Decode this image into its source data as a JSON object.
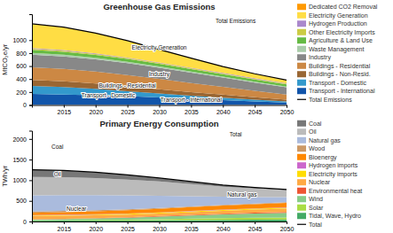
{
  "chart_data": [
    {
      "type": "area",
      "stacked": true,
      "title": "Greenhouse Gas Emissions",
      "ylabel": "MtCO₂e/yr",
      "x": [
        2010,
        2015,
        2020,
        2025,
        2030,
        2035,
        2040,
        2045,
        2050
      ],
      "xlim": [
        2010,
        2050
      ],
      "xticks": [
        2015,
        2020,
        2025,
        2030,
        2035,
        2040,
        2045,
        2050
      ],
      "ylim": [
        0,
        1400
      ],
      "yticks": [
        0,
        200,
        400,
        600,
        800,
        1000
      ],
      "legend": "right",
      "series": [
        {
          "name": "Transport - International",
          "color": "#1155aa",
          "values": [
            170,
            162,
            150,
            135,
            115,
            95,
            75,
            55,
            38
          ]
        },
        {
          "name": "Transport - Domestic",
          "color": "#3399cc",
          "values": [
            125,
            115,
            98,
            78,
            62,
            48,
            38,
            28,
            18
          ]
        },
        {
          "name": "Buildings - Non-Resid.",
          "color": "#996633",
          "values": [
            90,
            88,
            82,
            74,
            65,
            56,
            46,
            36,
            26
          ]
        },
        {
          "name": "Buildings - Residential",
          "color": "#cc8844",
          "values": [
            195,
            192,
            185,
            175,
            160,
            140,
            120,
            98,
            78
          ]
        },
        {
          "name": "Industry",
          "color": "#888888",
          "values": [
            195,
            192,
            188,
            183,
            173,
            158,
            143,
            128,
            113
          ]
        },
        {
          "name": "Waste Management",
          "color": "#aaccaa",
          "values": [
            28,
            26,
            24,
            22,
            20,
            18,
            16,
            14,
            12
          ]
        },
        {
          "name": "Agriculture & Land Use",
          "color": "#66bb44",
          "values": [
            48,
            46,
            44,
            42,
            40,
            38,
            36,
            34,
            32
          ]
        },
        {
          "name": "Other Electricity Imports",
          "color": "#cccc44",
          "values": [
            18,
            17,
            16,
            15,
            14,
            13,
            12,
            11,
            10
          ]
        },
        {
          "name": "Hydrogen Production",
          "color": "#aa88cc",
          "values": [
            8,
            8,
            8,
            8,
            8,
            8,
            8,
            8,
            8
          ]
        },
        {
          "name": "Electricity Generation",
          "color": "#ffdd44",
          "values": [
            370,
            350,
            310,
            255,
            195,
            145,
            95,
            65,
            45
          ]
        },
        {
          "name": "Dedicated CO2 Removal",
          "color": "#ff9900",
          "values": [
            4,
            4,
            4,
            4,
            4,
            4,
            4,
            4,
            4
          ]
        },
        {
          "name": "Total Emissions",
          "color": "black",
          "type": "line",
          "values": [
            1251,
            1200,
            1109,
            991,
            856,
            723,
            593,
            481,
            384
          ]
        }
      ],
      "annotations": [
        {
          "text": "Electricity Generation",
          "x": 2030,
          "y": 850
        },
        {
          "text": "Industry",
          "x": 2030,
          "y": 450
        },
        {
          "text": "Buildings - Residential",
          "x": 2025,
          "y": 270
        },
        {
          "text": "Transport - Domestic",
          "x": 2022,
          "y": 110
        },
        {
          "text": "Transport - International",
          "x": 2035,
          "y": 45
        },
        {
          "text": "Total Emissions",
          "x": 2042,
          "y": 1260
        }
      ]
    },
    {
      "type": "area",
      "stacked": true,
      "title": "Primary Energy Consumption",
      "ylabel": "TWh/yr",
      "x": [
        2010,
        2015,
        2020,
        2025,
        2030,
        2035,
        2040,
        2045,
        2050
      ],
      "xlim": [
        2010,
        2050
      ],
      "xticks": [
        2015,
        2020,
        2025,
        2030,
        2035,
        2040,
        2045,
        2050
      ],
      "ylim": [
        0,
        2200
      ],
      "yticks": [
        0,
        500,
        1000,
        1500,
        2000
      ],
      "legend": "right",
      "series": [
        {
          "name": "Tidal, Wave, Hydro",
          "color": "#44aa66",
          "values": [
            18,
            20,
            23,
            26,
            30,
            34,
            38,
            42,
            46
          ]
        },
        {
          "name": "Solar",
          "color": "#aadd44",
          "values": [
            8,
            10,
            14,
            18,
            26,
            34,
            42,
            48,
            53
          ]
        },
        {
          "name": "Wind",
          "color": "#88cc88",
          "values": [
            22,
            28,
            36,
            48,
            63,
            78,
            93,
            103,
            110
          ]
        },
        {
          "name": "Environmental heat",
          "color": "#ee5533",
          "values": [
            7,
            8,
            9,
            11,
            13,
            15,
            17,
            19,
            21
          ]
        },
        {
          "name": "Nuclear",
          "color": "#ffaa44",
          "values": [
            78,
            76,
            70,
            66,
            63,
            66,
            70,
            76,
            83
          ]
        },
        {
          "name": "Electricity imports",
          "color": "#ffdd00",
          "values": [
            14,
            15,
            16,
            17,
            18,
            19,
            20,
            21,
            22
          ]
        },
        {
          "name": "Hydrogen imports",
          "color": "#cc66cc",
          "values": [
            9,
            9,
            9,
            9,
            9,
            9,
            9,
            9,
            9
          ]
        },
        {
          "name": "Bioenergy",
          "color": "#ff8800",
          "values": [
            55,
            62,
            70,
            78,
            86,
            93,
            98,
            103,
            106
          ]
        },
        {
          "name": "Wood",
          "color": "#cc9966",
          "values": [
            28,
            27,
            25,
            23,
            21,
            19,
            17,
            16,
            15
          ]
        },
        {
          "name": "Natural gas",
          "color": "#aabbdd",
          "values": [
            395,
            385,
            365,
            335,
            295,
            245,
            195,
            155,
            125
          ]
        },
        {
          "name": "Oil",
          "color": "#bbbbbb",
          "values": [
            445,
            435,
            415,
            385,
            345,
            295,
            245,
            205,
            170
          ]
        },
        {
          "name": "Coal",
          "color": "#777777",
          "values": [
            175,
            160,
            140,
            115,
            85,
            60,
            40,
            25,
            15
          ]
        },
        {
          "name": "Total",
          "color": "black",
          "type": "line",
          "values": [
            1254,
            1235,
            1192,
            1131,
            1054,
            967,
            884,
            822,
            775
          ]
        }
      ],
      "annotations": [
        {
          "text": "Coal",
          "x": 2014,
          "y": 1750
        },
        {
          "text": "Oil",
          "x": 2014,
          "y": 1100
        },
        {
          "text": "Natural gas",
          "x": 2043,
          "y": 600
        },
        {
          "text": "Nuclear",
          "x": 2017,
          "y": 250
        },
        {
          "text": "Total",
          "x": 2042,
          "y": 2050
        }
      ]
    }
  ]
}
